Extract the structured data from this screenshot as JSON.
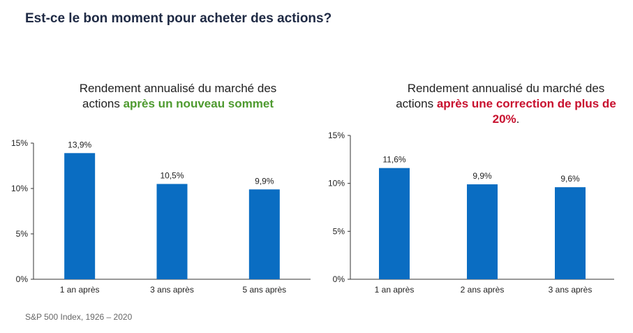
{
  "page": {
    "title": "Est-ce le bon moment pour acheter des actions?",
    "source": "S&P 500 Index, 1926 – 2020"
  },
  "chart_data": [
    {
      "type": "bar",
      "title_prefix": "Rendement annualisé du marché des actions ",
      "title_highlight": "après un nouveau sommet",
      "title_suffix": "",
      "highlight_color": "#4e9a2f",
      "categories": [
        "1 an après",
        "3 ans après",
        "5 ans après"
      ],
      "values": [
        13.9,
        10.5,
        9.9
      ],
      "value_labels": [
        "13,9%",
        "10,5%",
        "9,9%"
      ],
      "yticks": [
        "0%",
        "5%",
        "10%",
        "15%"
      ],
      "ylim": [
        0,
        15
      ],
      "bar_color": "#0a6dc2",
      "grid": false
    },
    {
      "type": "bar",
      "title_prefix": "Rendement annualisé du marché des actions ",
      "title_highlight": "après une correction de plus de 20%",
      "title_suffix": ".",
      "highlight_color": "#c8102e",
      "categories": [
        "1 an après",
        "2 ans après",
        "3 ans après"
      ],
      "values": [
        11.6,
        9.9,
        9.6
      ],
      "value_labels": [
        "11,6%",
        "9,9%",
        "9,6%"
      ],
      "yticks": [
        "0%",
        "5%",
        "10%",
        "15%"
      ],
      "ylim": [
        0,
        15
      ],
      "bar_color": "#0a6dc2",
      "grid": false
    }
  ]
}
